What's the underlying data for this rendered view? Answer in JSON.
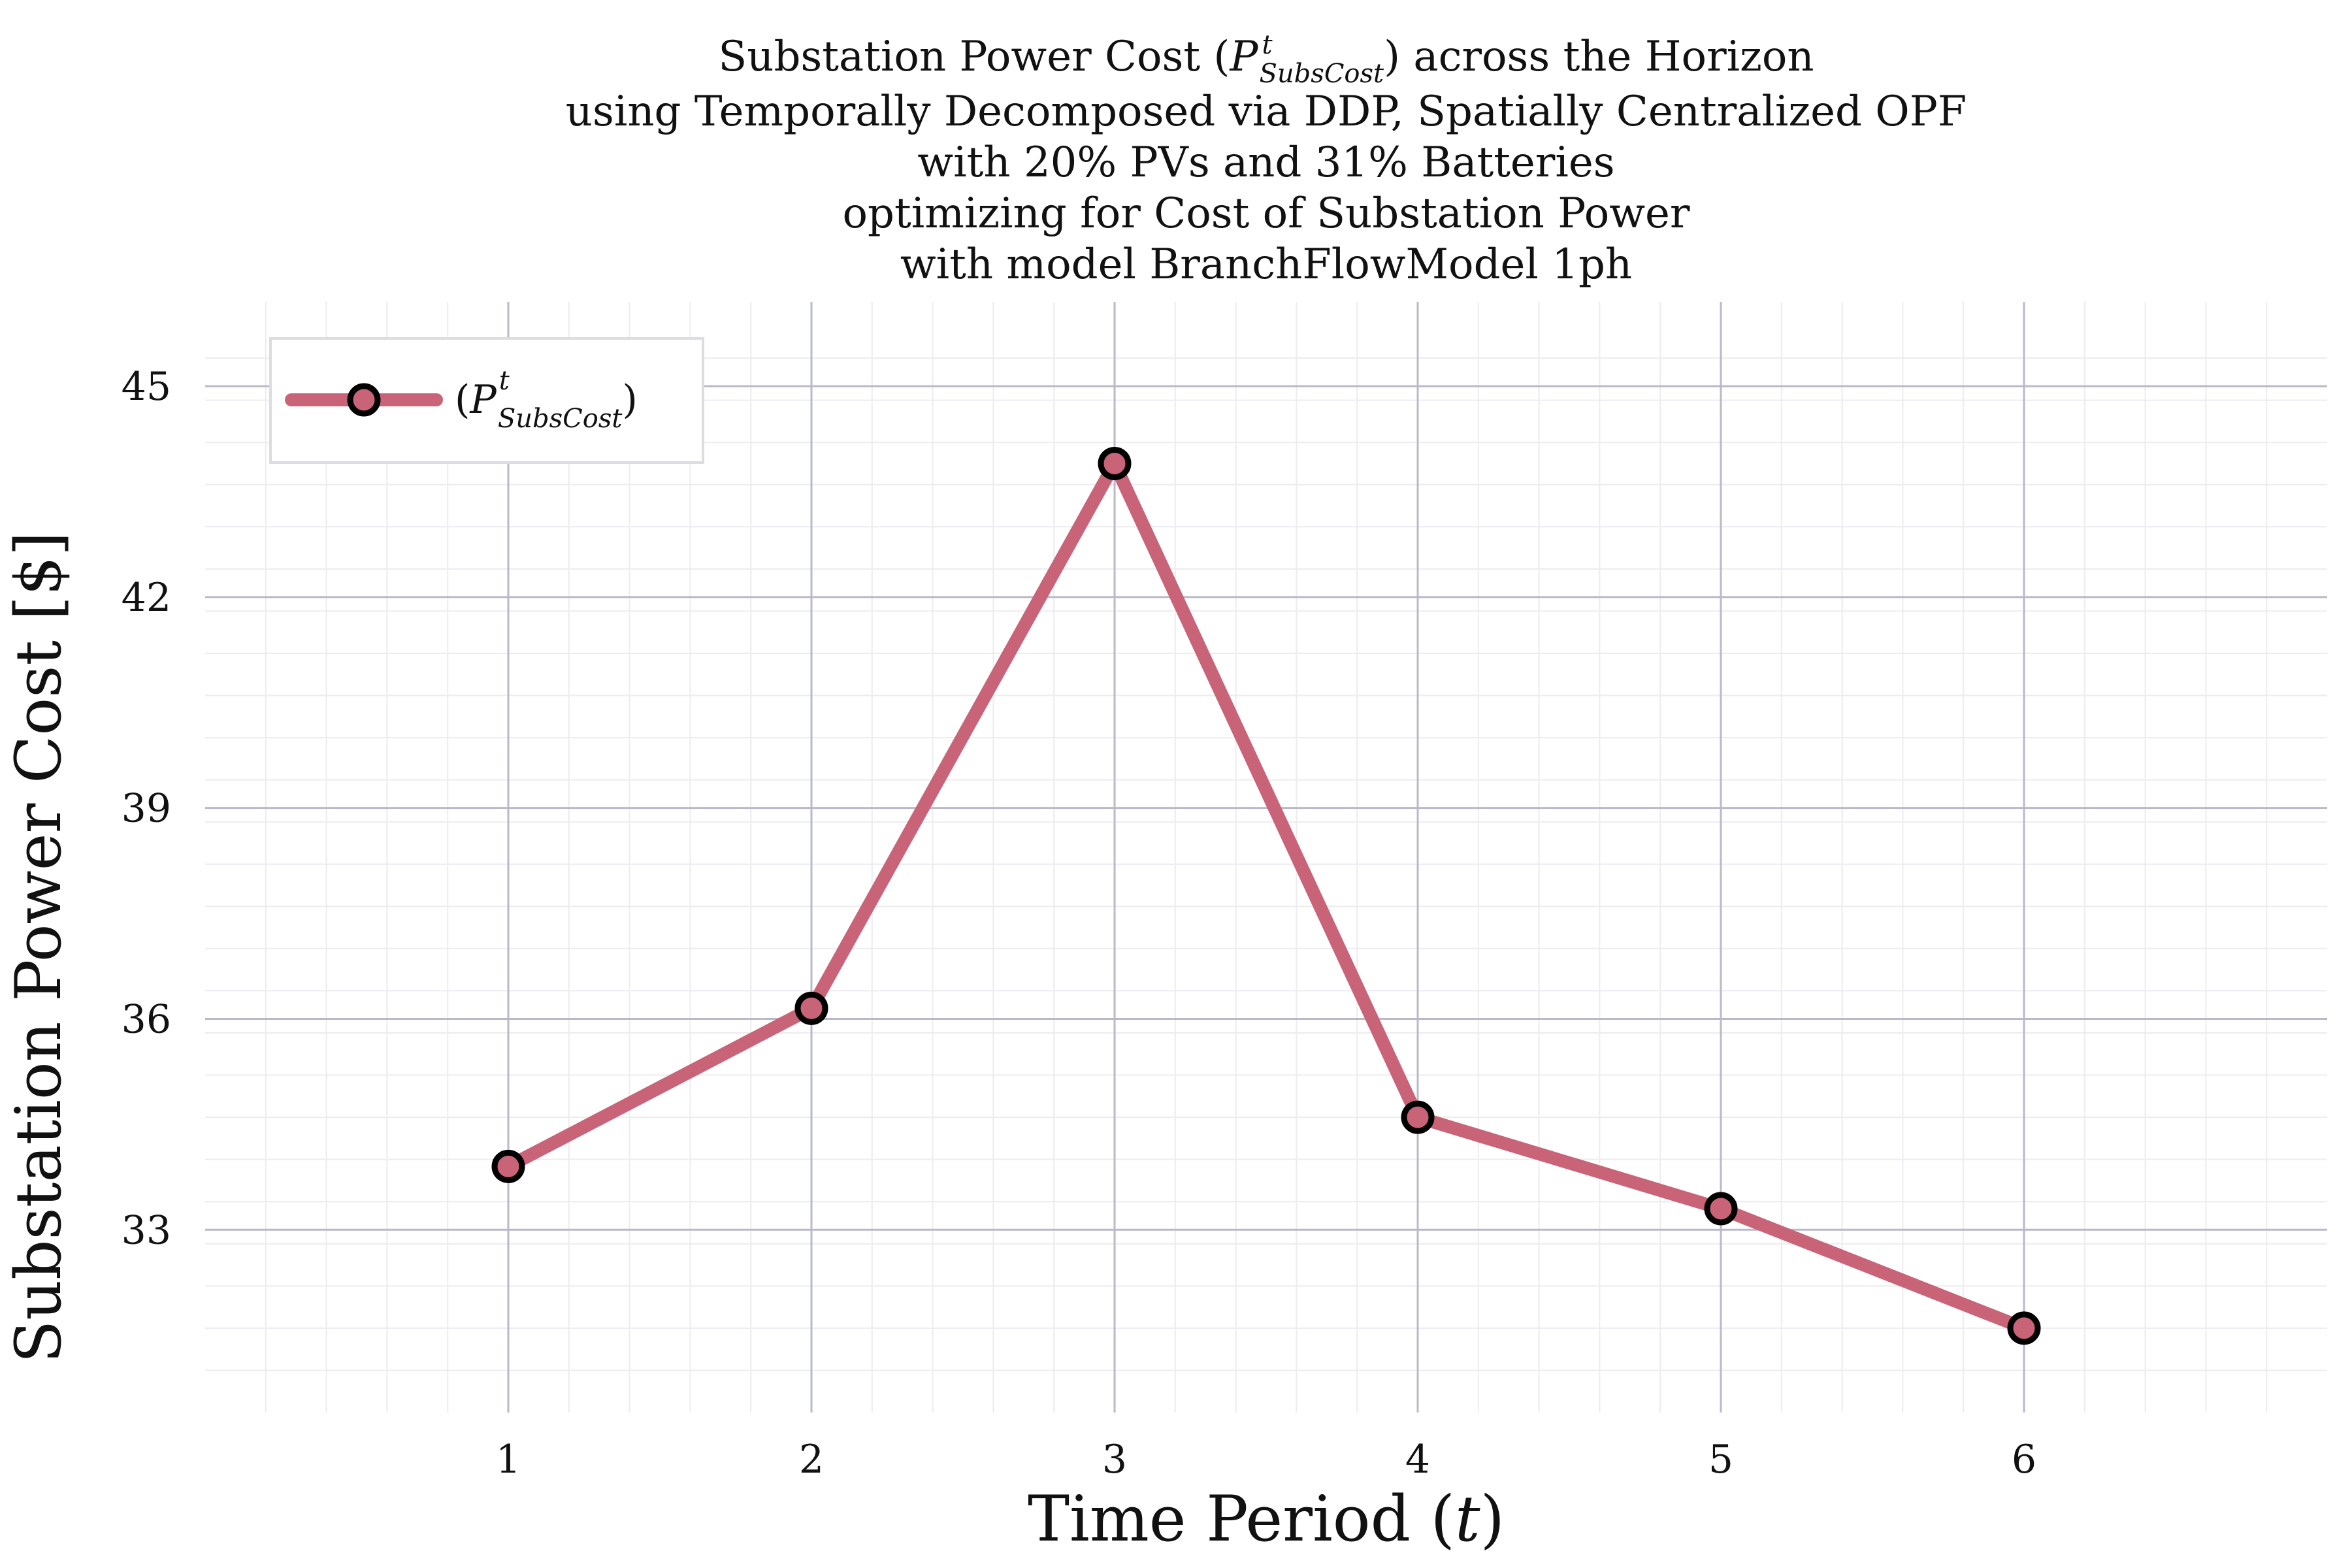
{
  "chart_data": {
    "type": "line",
    "title_lines": [
      "Substation Power Cost (P^t_SubsCost) across the Horizon",
      "using Temporally Decomposed via DDP, Spatially Centralized OPF",
      "with 20% PVs and 31% Batteries",
      "optimizing for Cost of Substation Power",
      "with model BranchFlowModel 1ph"
    ],
    "title_parts": {
      "line1_pre": "Substation Power Cost (",
      "line1_sym": "P",
      "line1_sup": "t",
      "line1_sub": "SubsCost",
      "line1_post": ") across the Horizon",
      "line2": "using Temporally Decomposed via DDP, Spatially Centralized OPF",
      "line3": "with 20% PVs and 31% Batteries",
      "line4": "optimizing for Cost of Substation Power",
      "line5": "with model BranchFlowModel 1ph"
    },
    "xlabel": "Time Period (t)",
    "xlabel_parts": {
      "pre": "Time Period (",
      "var": "t",
      "post": ")"
    },
    "ylabel": "Substation Power Cost [$]",
    "x": [
      1,
      2,
      3,
      4,
      5,
      6
    ],
    "series": [
      {
        "name": "(P^t_SubsCost)",
        "name_parts": {
          "open": "(",
          "sym": "P",
          "sup": "t",
          "sub": "SubsCost",
          "close": ")"
        },
        "values": [
          33.9,
          36.15,
          43.9,
          34.6,
          33.3,
          31.6
        ],
        "color": "#c96478",
        "marker": "circle",
        "marker_edge_color": "#000000"
      }
    ],
    "xlim": [
      0.0,
      7.0
    ],
    "ylim": [
      30.4,
      46.2
    ],
    "x_ticks": [
      "1",
      "2",
      "3",
      "4",
      "5",
      "6"
    ],
    "y_ticks": [
      "33",
      "36",
      "39",
      "42",
      "45"
    ],
    "grid": true,
    "legend_position": "top-left"
  }
}
